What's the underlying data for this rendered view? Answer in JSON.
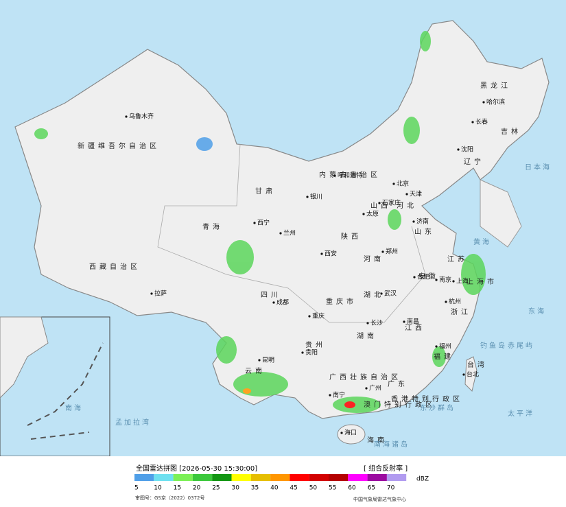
{
  "header": {
    "title": "全国雷达拼图 [2026-05-30 15:30:00]",
    "product": "[ 组合反射率 ]"
  },
  "legend": {
    "unit": "dBZ",
    "colors": [
      "#4f9fe8",
      "#6ee0f0",
      "#7cf056",
      "#3cc83c",
      "#139613",
      "#ffff00",
      "#e6be00",
      "#ff9600",
      "#ff0000",
      "#d20000",
      "#b40000",
      "#ff00ff",
      "#9b0ba0",
      "#b19bf0"
    ],
    "ticks": [
      5,
      10,
      15,
      20,
      25,
      30,
      35,
      40,
      45,
      50,
      55,
      60,
      65,
      70
    ]
  },
  "footer": {
    "approval": "审图号：GS京（2022）0372号",
    "source": "中国气象局雷达气象中心"
  },
  "map": {
    "provinces": [
      "新疆维吾尔自治区",
      "西藏自治区",
      "青海",
      "甘肃",
      "内蒙古自治区",
      "黑龙江",
      "吉林",
      "辽宁",
      "河北",
      "山西",
      "陕西",
      "四川",
      "重庆市",
      "贵州",
      "云南",
      "广西壮族自治区",
      "广东",
      "湖南",
      "湖北",
      "河南",
      "山东",
      "安徽",
      "江苏",
      "上海市",
      "浙江",
      "江西",
      "福建",
      "台湾",
      "海南",
      "香港特别行政区",
      "澳门特别行政区"
    ],
    "cities": [
      "乌鲁木齐",
      "拉萨",
      "西宁",
      "兰州",
      "银川",
      "呼和浩特",
      "北京",
      "天津",
      "石家庄",
      "太原",
      "济南",
      "郑州",
      "西安",
      "成都",
      "重庆",
      "贵阳",
      "昆明",
      "南宁",
      "长沙",
      "武汉",
      "合肥",
      "南京",
      "上海",
      "杭州",
      "南昌",
      "福州",
      "台北",
      "广州",
      "海口",
      "沈阳",
      "长春",
      "哈尔滨"
    ],
    "seas": [
      "日本海",
      "黄海",
      "东海",
      "太平洋",
      "孟加拉湾",
      "南海",
      "钓鱼岛",
      "赤尾屿",
      "东沙群岛",
      "南海诸岛"
    ]
  }
}
